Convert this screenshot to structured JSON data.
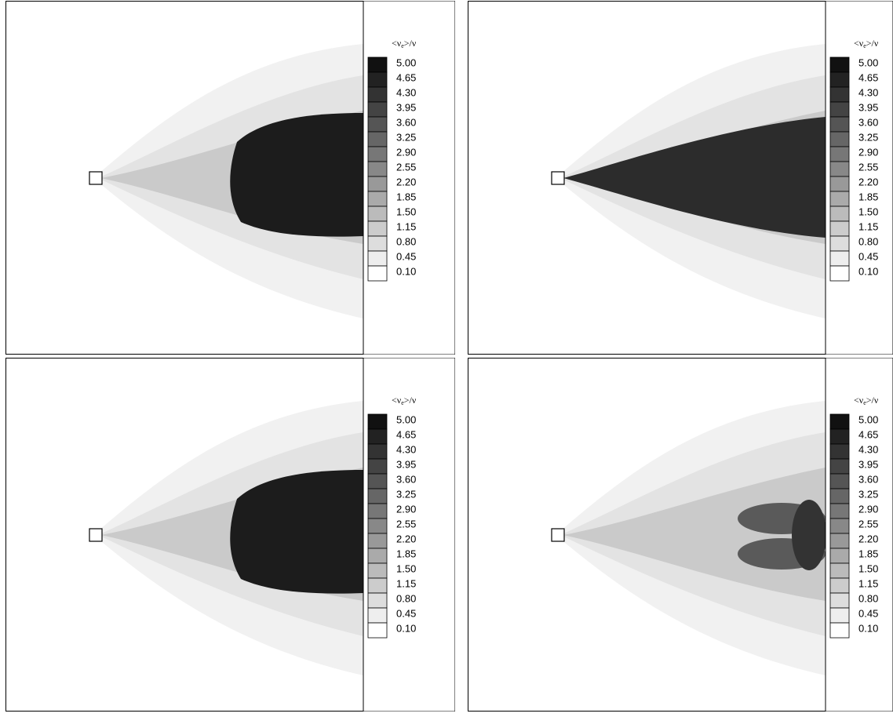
{
  "panels": [
    {
      "legend": {
        "title": {
          "main": "<ν",
          "sub": "e",
          "tail": ">/ν"
        },
        "levels": [
          "5.00",
          "4.65",
          "4.30",
          "3.95",
          "3.60",
          "3.25",
          "2.90",
          "2.55",
          "2.20",
          "1.85",
          "1.50",
          "1.15",
          "0.80",
          "0.45",
          "0.10"
        ]
      }
    },
    {
      "legend": {
        "title": {
          "main": "<ν",
          "sub": "e",
          "tail": ">/ν"
        },
        "levels": [
          "5.00",
          "4.65",
          "4.30",
          "3.95",
          "3.60",
          "3.25",
          "2.90",
          "2.55",
          "2.20",
          "1.85",
          "1.50",
          "1.15",
          "0.80",
          "0.45",
          "0.10"
        ]
      }
    },
    {
      "legend": {
        "title": {
          "main": "<ν",
          "sub": "e",
          "tail": ">/ν"
        },
        "levels": [
          "5.00",
          "4.65",
          "4.30",
          "3.95",
          "3.60",
          "3.25",
          "2.90",
          "2.55",
          "2.20",
          "1.85",
          "1.50",
          "1.15",
          "0.80",
          "0.45",
          "0.10"
        ]
      }
    },
    {
      "legend": {
        "title": {
          "main": "<ν",
          "sub": "e",
          "tail": ">/ν"
        },
        "levels": [
          "5.00",
          "4.65",
          "4.30",
          "3.95",
          "3.60",
          "3.25",
          "2.90",
          "2.55",
          "2.20",
          "1.85",
          "1.50",
          "1.15",
          "0.80",
          "0.45",
          "0.10"
        ]
      }
    }
  ]
}
